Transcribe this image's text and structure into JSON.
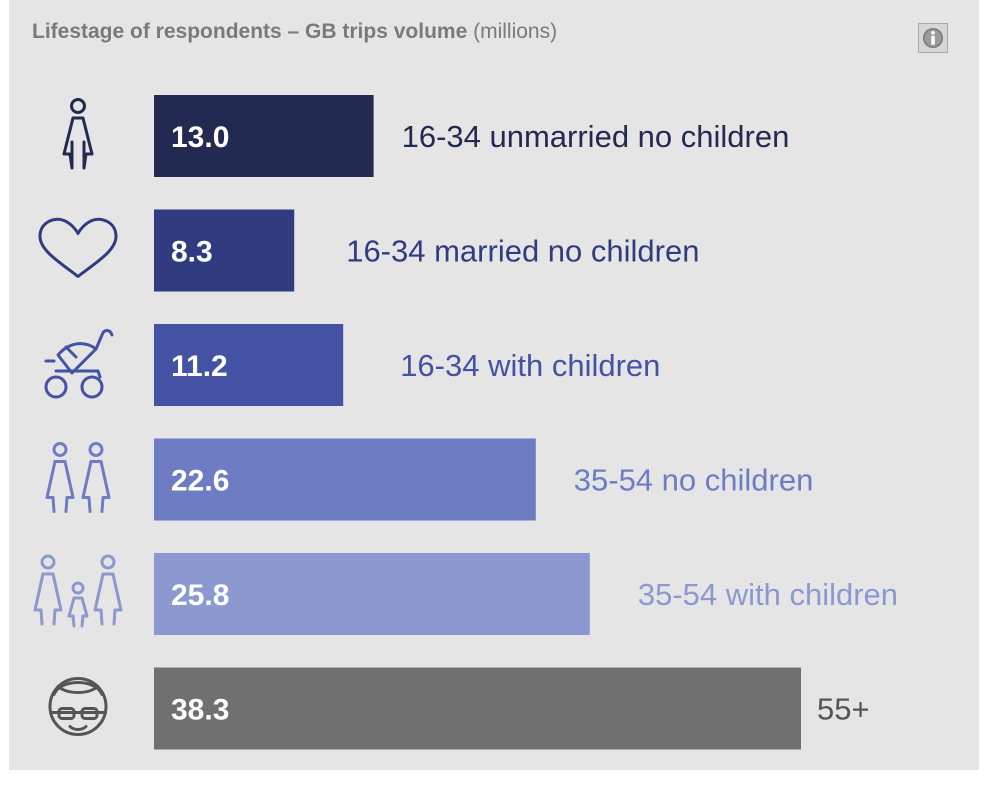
{
  "title": {
    "bold": "Lifestage of respondents – GB trips volume",
    "unit": "(millions)"
  },
  "info_icon": "info-icon",
  "chart_data": {
    "type": "bar",
    "orientation": "horizontal",
    "title": "Lifestage of respondents – GB trips volume (millions)",
    "categories": [
      "16-34 unmarried no children",
      "16-34 married no children",
      "16-34 with children",
      "35-54 no children",
      "35-54 with children",
      "55+"
    ],
    "values": [
      13.0,
      8.3,
      11.2,
      22.6,
      25.8,
      38.3
    ],
    "value_labels": [
      "13.0",
      "8.3",
      "11.2",
      "22.6",
      "25.8",
      "38.3"
    ],
    "colors": [
      "#232a52",
      "#313c80",
      "#4452a4",
      "#6d7cc3",
      "#8c99d0",
      "#707070"
    ],
    "label_colors": [
      "#232a52",
      "#313c80",
      "#4452a4",
      "#6d7cc3",
      "#8c99d0",
      "#555555"
    ],
    "icons": [
      "person-icon",
      "heart-icon",
      "stroller-icon",
      "couple-icon",
      "family-icon",
      "elderly-person-icon"
    ],
    "icon_colors": [
      "#232a52",
      "#313c80",
      "#4452a4",
      "#6d7cc3",
      "#8c99d0",
      "#555555"
    ],
    "xlim": [
      0,
      38.3
    ],
    "xlabel": "",
    "ylabel": "",
    "grid": false,
    "legend": "none"
  }
}
